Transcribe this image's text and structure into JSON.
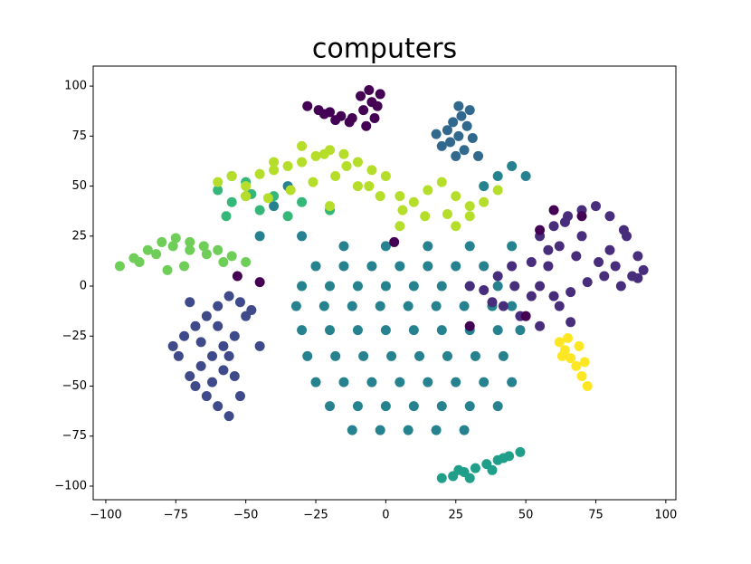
{
  "chart_data": {
    "type": "scatter",
    "title": "computers",
    "xlim": [
      -104.5,
      103.6
    ],
    "ylim": [
      -106.8,
      110
    ],
    "xticks": [
      {
        "value": -100,
        "label": "−100"
      },
      {
        "value": -75,
        "label": "−75"
      },
      {
        "value": -50,
        "label": "−50"
      },
      {
        "value": -25,
        "label": "−25"
      },
      0,
      25,
      50,
      75,
      100
    ],
    "yticks": [
      {
        "value": -100,
        "label": "−100"
      },
      {
        "value": -75,
        "label": "−75"
      },
      {
        "value": -50,
        "label": "−50"
      },
      {
        "value": -25,
        "label": "−25"
      },
      0,
      25,
      50,
      75,
      100
    ],
    "series": [
      {
        "color": "#26828e",
        "x": [
          -25,
          -15,
          -5,
          5,
          15,
          25,
          35,
          -30,
          -20,
          -10,
          0,
          10,
          20,
          30,
          40,
          -32,
          -22,
          -12,
          -2,
          8,
          18,
          28,
          38,
          45,
          -30,
          -20,
          -10,
          0,
          10,
          20,
          30,
          40,
          48,
          -28,
          -18,
          -8,
          2,
          12,
          22,
          32,
          42,
          -25,
          -15,
          -5,
          5,
          15,
          25,
          35,
          45,
          -20,
          -10,
          0,
          10,
          20,
          30,
          40,
          -12,
          -2,
          8,
          18,
          28,
          -15,
          0,
          15,
          30,
          45,
          -55,
          -50,
          -40,
          -35,
          -45,
          -30,
          45,
          40,
          50,
          35
        ],
        "y": [
          10,
          10,
          10,
          10,
          10,
          10,
          10,
          0,
          0,
          0,
          0,
          0,
          0,
          0,
          0,
          -10,
          -10,
          -10,
          -10,
          -10,
          -10,
          -10,
          -10,
          -10,
          -22,
          -22,
          -22,
          -22,
          -22,
          -22,
          -22,
          -22,
          -22,
          -35,
          -35,
          -35,
          -35,
          -35,
          -35,
          -35,
          -35,
          -48,
          -48,
          -48,
          -48,
          -48,
          -48,
          -48,
          -48,
          -60,
          -60,
          -60,
          -60,
          -60,
          -60,
          -60,
          -72,
          -72,
          -72,
          -72,
          -72,
          20,
          20,
          20,
          20,
          20,
          55,
          45,
          40,
          50,
          25,
          25,
          60,
          55,
          55,
          50
        ]
      },
      {
        "color": "#1f9e89",
        "x": [
          20,
          24,
          28,
          32,
          36,
          40,
          44,
          48,
          30,
          38,
          26,
          42
        ],
        "y": [
          -96,
          -95,
          -93,
          -91,
          -89,
          -87,
          -85,
          -83,
          -96,
          -92,
          -92,
          -86
        ]
      },
      {
        "color": "#35b779",
        "x": [
          -60,
          -55,
          -50,
          -45,
          -40,
          -35,
          -30,
          -20,
          -57,
          -48
        ],
        "y": [
          48,
          42,
          52,
          38,
          45,
          35,
          42,
          38,
          35,
          46
        ]
      },
      {
        "color": "#b5de2b",
        "x": [
          -60,
          -55,
          -50,
          -45,
          -40,
          -35,
          -30,
          -25,
          -20,
          -15,
          -10,
          -5,
          0,
          5,
          10,
          15,
          20,
          25,
          30,
          35,
          40,
          -50,
          -42,
          -34,
          -26,
          -18,
          -10,
          -2,
          6,
          14,
          22,
          30,
          -30,
          -22,
          -14,
          -6,
          -40,
          -20,
          5,
          25
        ],
        "y": [
          52,
          55,
          50,
          56,
          58,
          60,
          62,
          65,
          68,
          66,
          62,
          58,
          55,
          45,
          42,
          48,
          52,
          45,
          40,
          42,
          48,
          45,
          44,
          48,
          52,
          55,
          50,
          45,
          38,
          35,
          36,
          35,
          70,
          66,
          60,
          50,
          62,
          40,
          30,
          30
        ]
      },
      {
        "color": "#6ece58",
        "x": [
          -95,
          -90,
          -85,
          -80,
          -75,
          -70,
          -65,
          -60,
          -55,
          -50,
          -88,
          -82,
          -76,
          -70,
          -64,
          -58,
          -78,
          -72
        ],
        "y": [
          10,
          14,
          18,
          22,
          24,
          22,
          20,
          18,
          15,
          12,
          12,
          16,
          20,
          18,
          16,
          12,
          8,
          10
        ]
      },
      {
        "color": "#3e4a89",
        "x": [
          -72,
          -68,
          -64,
          -60,
          -56,
          -52,
          -50,
          -54,
          -58,
          -62,
          -66,
          -70,
          -74,
          -68,
          -64,
          -60,
          -56,
          -52,
          -62,
          -58,
          -66,
          -60,
          -56,
          -54,
          -48,
          -45,
          -76,
          -70
        ],
        "y": [
          -25,
          -20,
          -15,
          -10,
          -5,
          -8,
          -15,
          -25,
          -30,
          -35,
          -40,
          -45,
          -35,
          -50,
          -55,
          -60,
          -65,
          -55,
          -48,
          -42,
          -28,
          -20,
          -35,
          -45,
          -12,
          -30,
          -30,
          -8
        ]
      },
      {
        "color": "#31688e",
        "x": [
          20,
          23,
          26,
          29,
          24,
          27,
          30,
          22,
          25,
          28,
          18,
          31,
          33,
          26
        ],
        "y": [
          70,
          72,
          75,
          80,
          82,
          85,
          88,
          78,
          65,
          68,
          76,
          74,
          65,
          90
        ]
      },
      {
        "color": "#472d7b",
        "x": [
          55,
          60,
          65,
          70,
          75,
          80,
          85,
          90,
          92,
          88,
          82,
          76,
          68,
          62,
          58,
          55,
          60,
          66,
          72,
          78,
          84,
          90,
          70,
          64,
          58,
          52,
          45,
          40,
          35,
          30,
          42,
          48,
          55,
          62,
          66,
          52,
          46,
          38,
          80,
          86
        ],
        "y": [
          25,
          30,
          35,
          38,
          40,
          35,
          28,
          15,
          8,
          5,
          10,
          12,
          15,
          20,
          10,
          0,
          -5,
          -3,
          2,
          5,
          0,
          4,
          25,
          32,
          18,
          12,
          10,
          5,
          -2,
          0,
          -10,
          -15,
          -20,
          -10,
          -18,
          -5,
          0,
          -8,
          18,
          25
        ]
      },
      {
        "color": "#440154",
        "x": [
          -28,
          -24,
          -20,
          -16,
          -12,
          -8,
          -5,
          -2,
          -9,
          -6,
          -3,
          -13,
          -18,
          -22,
          -7,
          -4,
          60,
          55,
          70,
          -45,
          -53,
          3,
          30,
          50
        ],
        "y": [
          90,
          88,
          87,
          85,
          84,
          88,
          92,
          96,
          95,
          98,
          90,
          82,
          83,
          86,
          80,
          84,
          38,
          28,
          35,
          2,
          5,
          22,
          -20,
          -15
        ]
      },
      {
        "color": "#fde725",
        "x": [
          62,
          64,
          66,
          68,
          70,
          72,
          65,
          69,
          71,
          63
        ],
        "y": [
          -28,
          -32,
          -36,
          -40,
          -45,
          -50,
          -26,
          -30,
          -38,
          -35
        ]
      }
    ]
  }
}
